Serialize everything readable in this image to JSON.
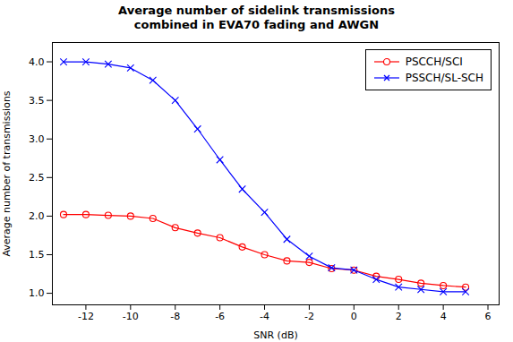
{
  "chart_data": {
    "type": "line",
    "title": "Average number of sidelink transmissions\ncombined in EVA70 fading and AWGN",
    "xlabel": "SNR (dB)",
    "ylabel": "Average number of transmissions",
    "x": [
      -13,
      -12,
      -11,
      -10,
      -9,
      -8,
      -7,
      -6,
      -5,
      -4,
      -3,
      -2,
      -1,
      0,
      1,
      2,
      3,
      4,
      5
    ],
    "series": [
      {
        "name": "PSCCH/SCI",
        "color": "#FF0000",
        "marker": "circle",
        "values": [
          2.02,
          2.02,
          2.01,
          2.0,
          1.97,
          1.85,
          1.78,
          1.72,
          1.6,
          1.5,
          1.42,
          1.4,
          1.32,
          1.3,
          1.22,
          1.18,
          1.13,
          1.1,
          1.08
        ]
      },
      {
        "name": "PSSCH/SL-SCH",
        "color": "#0000FF",
        "marker": "x",
        "values": [
          4.0,
          4.0,
          3.97,
          3.92,
          3.76,
          3.5,
          3.13,
          2.73,
          2.35,
          2.05,
          1.7,
          1.48,
          1.33,
          1.3,
          1.18,
          1.08,
          1.05,
          1.02,
          1.02
        ]
      }
    ],
    "xlim": [
      -13.5,
      6.5
    ],
    "ylim": [
      0.85,
      4.25
    ],
    "xticks": [
      -12,
      -10,
      -8,
      -6,
      -4,
      -2,
      0,
      2,
      4,
      6
    ],
    "yticks": [
      {
        "value": 1,
        "label": "1.0"
      },
      {
        "value": 1.5,
        "label": "1.5"
      },
      {
        "value": 2,
        "label": "2.0"
      },
      {
        "value": 2.5,
        "label": "2.5"
      },
      {
        "value": 3,
        "label": "3.0"
      },
      {
        "value": 3.5,
        "label": "3.5"
      },
      {
        "value": 4,
        "label": "4.0"
      }
    ],
    "grid": false,
    "legend": "upper right"
  }
}
